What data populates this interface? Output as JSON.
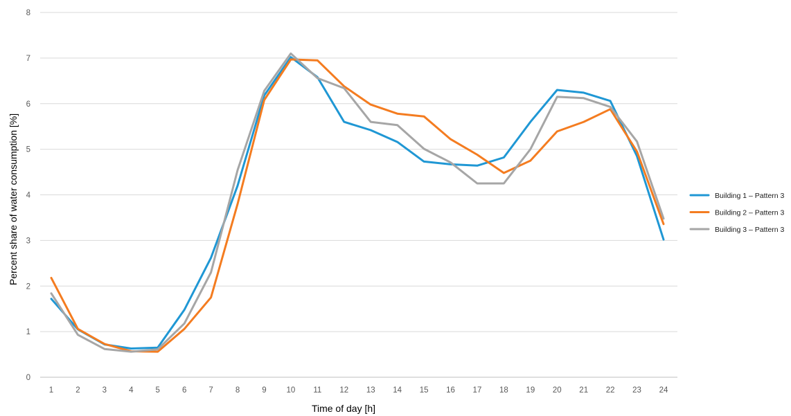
{
  "chart_data": {
    "type": "line",
    "title": "",
    "xlabel": "Time of day [h]",
    "ylabel": "Percent share of water consumption [%]",
    "x": [
      1,
      2,
      3,
      4,
      5,
      6,
      7,
      8,
      9,
      10,
      11,
      12,
      13,
      14,
      15,
      16,
      17,
      18,
      19,
      20,
      21,
      22,
      23,
      24
    ],
    "x_tick_labels": [
      "1",
      "2",
      "3",
      "4",
      "5",
      "6",
      "7",
      "8",
      "9",
      "10",
      "11",
      "12",
      "13",
      "14",
      "15",
      "16",
      "17",
      "18",
      "19",
      "20",
      "21",
      "22",
      "23",
      "24"
    ],
    "ylim": [
      0,
      8
    ],
    "y_ticks": [
      0,
      1,
      2,
      3,
      4,
      5,
      6,
      7,
      8
    ],
    "y_tick_labels": [
      "0",
      "1",
      "2",
      "3",
      "4",
      "5",
      "6",
      "7",
      "8"
    ],
    "grid": true,
    "legend_position": "right",
    "series": [
      {
        "name": "Building 1 – Pattern 3",
        "color": "#1f97d4",
        "values": [
          1.72,
          1.05,
          0.72,
          0.63,
          0.65,
          1.48,
          2.62,
          4.2,
          6.18,
          7.02,
          6.58,
          5.6,
          5.42,
          5.16,
          4.73,
          4.67,
          4.64,
          4.82,
          5.6,
          6.3,
          6.24,
          6.06,
          4.85,
          3.02
        ]
      },
      {
        "name": "Building 2 – Pattern 3",
        "color": "#f47c20",
        "values": [
          2.18,
          1.06,
          0.73,
          0.57,
          0.56,
          1.06,
          1.75,
          3.8,
          6.08,
          6.97,
          6.95,
          6.38,
          5.98,
          5.78,
          5.72,
          5.22,
          4.88,
          4.48,
          4.75,
          5.39,
          5.6,
          5.88,
          4.95,
          3.36
        ]
      },
      {
        "name": "Building 3 – Pattern 3",
        "color": "#a6a6a6",
        "values": [
          1.84,
          0.93,
          0.62,
          0.56,
          0.61,
          1.18,
          2.3,
          4.54,
          6.28,
          7.1,
          6.56,
          6.34,
          5.6,
          5.53,
          5.01,
          4.71,
          4.25,
          4.25,
          5.0,
          6.15,
          6.12,
          5.93,
          5.17,
          3.48
        ]
      }
    ]
  }
}
